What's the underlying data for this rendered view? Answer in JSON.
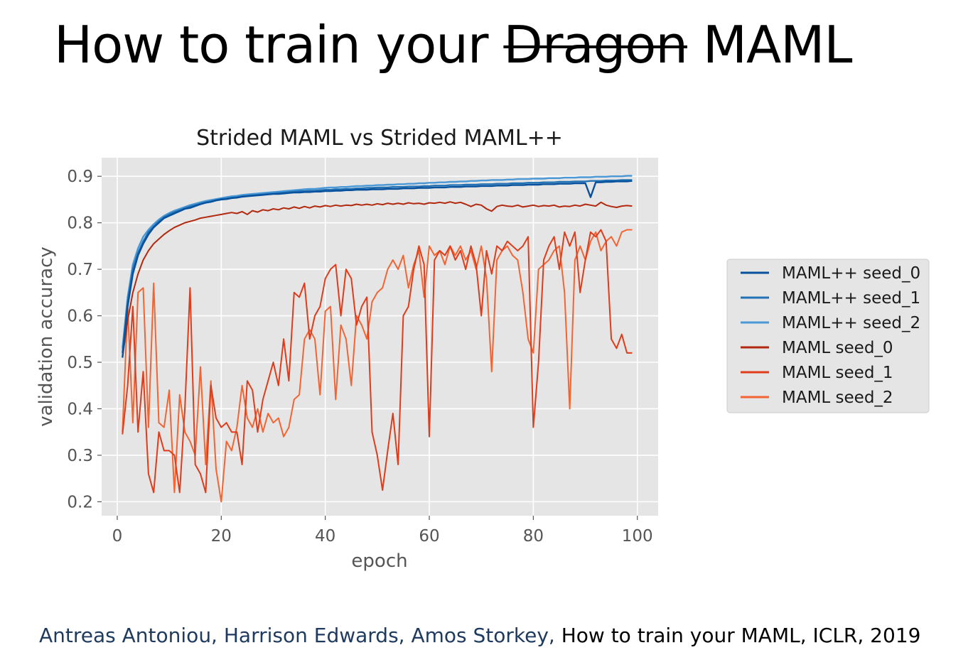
{
  "slide": {
    "title_prefix": "How to train your",
    "title_struck": "Dragon",
    "title_suffix": "MAML"
  },
  "citation": {
    "authors": "Antreas Antoniou, Harrison Edwards, Amos Storkey,",
    "reference": "How to train your MAML, ICLR, 2019"
  },
  "chart_data": {
    "type": "line",
    "title": "Strided MAML vs Strided MAML++",
    "xlabel": "epoch",
    "ylabel": "validation accuracy",
    "xlim": [
      -3,
      104
    ],
    "ylim": [
      0.17,
      0.94
    ],
    "xticks": [
      0,
      20,
      40,
      60,
      80,
      100
    ],
    "yticks": [
      0.2,
      0.3,
      0.4,
      0.5,
      0.6,
      0.7,
      0.8,
      0.9
    ],
    "xtick_labels": [
      "0",
      "20",
      "40",
      "60",
      "80",
      "100"
    ],
    "ytick_labels": [
      "0.2",
      "0.3",
      "0.4",
      "0.5",
      "0.6",
      "0.7",
      "0.8",
      "0.9"
    ],
    "grid": true,
    "legend_position": "outside-right",
    "x": [
      1,
      2,
      3,
      4,
      5,
      6,
      7,
      8,
      9,
      10,
      11,
      12,
      13,
      14,
      15,
      16,
      17,
      18,
      19,
      20,
      21,
      22,
      23,
      24,
      25,
      26,
      27,
      28,
      29,
      30,
      31,
      32,
      33,
      34,
      35,
      36,
      37,
      38,
      39,
      40,
      41,
      42,
      43,
      44,
      45,
      46,
      47,
      48,
      49,
      50,
      51,
      52,
      53,
      54,
      55,
      56,
      57,
      58,
      59,
      60,
      61,
      62,
      63,
      64,
      65,
      66,
      67,
      68,
      69,
      70,
      71,
      72,
      73,
      74,
      75,
      76,
      77,
      78,
      79,
      80,
      81,
      82,
      83,
      84,
      85,
      86,
      87,
      88,
      89,
      90,
      91,
      92,
      93,
      94,
      95,
      96,
      97,
      98,
      99
    ],
    "series": [
      {
        "name": "MAML++ seed_0",
        "color": "#08519c",
        "values": [
          0.51,
          0.62,
          0.69,
          0.73,
          0.755,
          0.775,
          0.79,
          0.8,
          0.81,
          0.815,
          0.82,
          0.825,
          0.83,
          0.832,
          0.836,
          0.84,
          0.843,
          0.845,
          0.848,
          0.85,
          0.851,
          0.853,
          0.854,
          0.856,
          0.857,
          0.858,
          0.859,
          0.86,
          0.861,
          0.862,
          0.862,
          0.863,
          0.864,
          0.865,
          0.865,
          0.866,
          0.866,
          0.867,
          0.867,
          0.868,
          0.868,
          0.869,
          0.869,
          0.87,
          0.87,
          0.871,
          0.871,
          0.871,
          0.872,
          0.872,
          0.872,
          0.873,
          0.873,
          0.873,
          0.874,
          0.874,
          0.874,
          0.875,
          0.875,
          0.875,
          0.876,
          0.876,
          0.876,
          0.877,
          0.877,
          0.877,
          0.878,
          0.878,
          0.878,
          0.879,
          0.879,
          0.879,
          0.88,
          0.88,
          0.88,
          0.881,
          0.881,
          0.881,
          0.882,
          0.882,
          0.882,
          0.883,
          0.883,
          0.883,
          0.884,
          0.884,
          0.884,
          0.885,
          0.885,
          0.885,
          0.855,
          0.887,
          0.887,
          0.888,
          0.888,
          0.889,
          0.889,
          0.889,
          0.89
        ]
      },
      {
        "name": "MAML++ seed_1",
        "color": "#2171b5",
        "values": [
          0.52,
          0.63,
          0.7,
          0.735,
          0.76,
          0.78,
          0.792,
          0.803,
          0.812,
          0.818,
          0.823,
          0.827,
          0.831,
          0.835,
          0.838,
          0.841,
          0.844,
          0.846,
          0.849,
          0.851,
          0.852,
          0.854,
          0.855,
          0.857,
          0.858,
          0.859,
          0.86,
          0.861,
          0.862,
          0.863,
          0.864,
          0.865,
          0.866,
          0.867,
          0.868,
          0.868,
          0.869,
          0.869,
          0.87,
          0.871,
          0.871,
          0.872,
          0.872,
          0.873,
          0.873,
          0.874,
          0.874,
          0.875,
          0.875,
          0.876,
          0.876,
          0.876,
          0.877,
          0.877,
          0.877,
          0.878,
          0.878,
          0.878,
          0.879,
          0.879,
          0.88,
          0.88,
          0.88,
          0.881,
          0.881,
          0.881,
          0.882,
          0.882,
          0.882,
          0.883,
          0.883,
          0.883,
          0.884,
          0.884,
          0.884,
          0.885,
          0.885,
          0.885,
          0.886,
          0.886,
          0.886,
          0.887,
          0.887,
          0.887,
          0.888,
          0.888,
          0.888,
          0.889,
          0.889,
          0.889,
          0.89,
          0.89,
          0.89,
          0.891,
          0.891,
          0.891,
          0.892,
          0.892,
          0.892
        ]
      },
      {
        "name": "MAML++ seed_2",
        "color": "#4a98d6",
        "values": [
          0.53,
          0.64,
          0.71,
          0.745,
          0.77,
          0.785,
          0.797,
          0.807,
          0.815,
          0.821,
          0.826,
          0.83,
          0.834,
          0.838,
          0.841,
          0.844,
          0.847,
          0.849,
          0.851,
          0.853,
          0.855,
          0.857,
          0.858,
          0.86,
          0.861,
          0.862,
          0.863,
          0.864,
          0.865,
          0.866,
          0.867,
          0.868,
          0.869,
          0.87,
          0.871,
          0.872,
          0.873,
          0.873,
          0.874,
          0.875,
          0.876,
          0.876,
          0.877,
          0.877,
          0.878,
          0.879,
          0.879,
          0.88,
          0.88,
          0.881,
          0.881,
          0.882,
          0.882,
          0.883,
          0.883,
          0.884,
          0.884,
          0.885,
          0.885,
          0.886,
          0.886,
          0.887,
          0.887,
          0.888,
          0.888,
          0.889,
          0.889,
          0.89,
          0.89,
          0.891,
          0.891,
          0.892,
          0.892,
          0.892,
          0.893,
          0.893,
          0.894,
          0.894,
          0.894,
          0.895,
          0.895,
          0.895,
          0.896,
          0.896,
          0.896,
          0.897,
          0.897,
          0.897,
          0.898,
          0.898,
          0.898,
          0.899,
          0.899,
          0.899,
          0.9,
          0.9,
          0.9,
          0.901,
          0.901
        ]
      },
      {
        "name": "MAML seed_0",
        "color": "#b2290f",
        "values": [
          0.51,
          0.59,
          0.65,
          0.69,
          0.72,
          0.74,
          0.755,
          0.765,
          0.775,
          0.783,
          0.79,
          0.795,
          0.8,
          0.803,
          0.806,
          0.81,
          0.812,
          0.814,
          0.816,
          0.818,
          0.82,
          0.822,
          0.82,
          0.824,
          0.818,
          0.826,
          0.823,
          0.828,
          0.826,
          0.83,
          0.828,
          0.832,
          0.83,
          0.834,
          0.831,
          0.835,
          0.832,
          0.836,
          0.834,
          0.837,
          0.835,
          0.838,
          0.836,
          0.838,
          0.837,
          0.84,
          0.838,
          0.84,
          0.838,
          0.841,
          0.839,
          0.842,
          0.84,
          0.842,
          0.84,
          0.843,
          0.841,
          0.842,
          0.84,
          0.843,
          0.842,
          0.844,
          0.842,
          0.845,
          0.842,
          0.844,
          0.84,
          0.835,
          0.84,
          0.838,
          0.83,
          0.825,
          0.835,
          0.838,
          0.836,
          0.835,
          0.838,
          0.834,
          0.836,
          0.838,
          0.835,
          0.837,
          0.836,
          0.838,
          0.834,
          0.836,
          0.835,
          0.838,
          0.836,
          0.84,
          0.838,
          0.836,
          0.844,
          0.838,
          0.835,
          0.833,
          0.836,
          0.837,
          0.836
        ]
      },
      {
        "name": "MAML seed_1",
        "color": "#de3c1a",
        "values": [
          0.345,
          0.45,
          0.62,
          0.35,
          0.48,
          0.26,
          0.22,
          0.35,
          0.31,
          0.31,
          0.3,
          0.22,
          0.4,
          0.66,
          0.28,
          0.26,
          0.22,
          0.45,
          0.38,
          0.36,
          0.37,
          0.35,
          0.35,
          0.28,
          0.46,
          0.44,
          0.35,
          0.42,
          0.46,
          0.5,
          0.45,
          0.55,
          0.46,
          0.65,
          0.64,
          0.67,
          0.55,
          0.6,
          0.62,
          0.68,
          0.7,
          0.71,
          0.6,
          0.7,
          0.68,
          0.58,
          0.62,
          0.64,
          0.35,
          0.3,
          0.225,
          0.31,
          0.39,
          0.28,
          0.6,
          0.62,
          0.7,
          0.75,
          0.71,
          0.34,
          0.72,
          0.74,
          0.73,
          0.75,
          0.72,
          0.74,
          0.7,
          0.75,
          0.71,
          0.6,
          0.74,
          0.69,
          0.75,
          0.74,
          0.76,
          0.75,
          0.74,
          0.75,
          0.77,
          0.36,
          0.5,
          0.72,
          0.75,
          0.77,
          0.7,
          0.78,
          0.75,
          0.78,
          0.65,
          0.72,
          0.78,
          0.77,
          0.785,
          0.76,
          0.55,
          0.53,
          0.56,
          0.52,
          0.52
        ]
      },
      {
        "name": "MAML seed_2",
        "color": "#f26533",
        "values": [
          0.35,
          0.62,
          0.37,
          0.65,
          0.66,
          0.36,
          0.67,
          0.37,
          0.36,
          0.44,
          0.22,
          0.43,
          0.35,
          0.33,
          0.3,
          0.49,
          0.28,
          0.46,
          0.27,
          0.2,
          0.33,
          0.31,
          0.36,
          0.45,
          0.38,
          0.36,
          0.4,
          0.35,
          0.39,
          0.37,
          0.38,
          0.34,
          0.36,
          0.42,
          0.43,
          0.55,
          0.57,
          0.55,
          0.43,
          0.61,
          0.62,
          0.42,
          0.58,
          0.55,
          0.45,
          0.6,
          0.58,
          0.55,
          0.63,
          0.65,
          0.66,
          0.7,
          0.72,
          0.7,
          0.73,
          0.66,
          0.71,
          0.74,
          0.64,
          0.75,
          0.73,
          0.74,
          0.71,
          0.75,
          0.73,
          0.75,
          0.72,
          0.74,
          0.7,
          0.75,
          0.68,
          0.48,
          0.72,
          0.74,
          0.75,
          0.73,
          0.72,
          0.65,
          0.55,
          0.52,
          0.7,
          0.71,
          0.72,
          0.74,
          0.75,
          0.65,
          0.4,
          0.72,
          0.75,
          0.72,
          0.76,
          0.78,
          0.74,
          0.76,
          0.77,
          0.75,
          0.78,
          0.785,
          0.785
        ]
      }
    ]
  }
}
